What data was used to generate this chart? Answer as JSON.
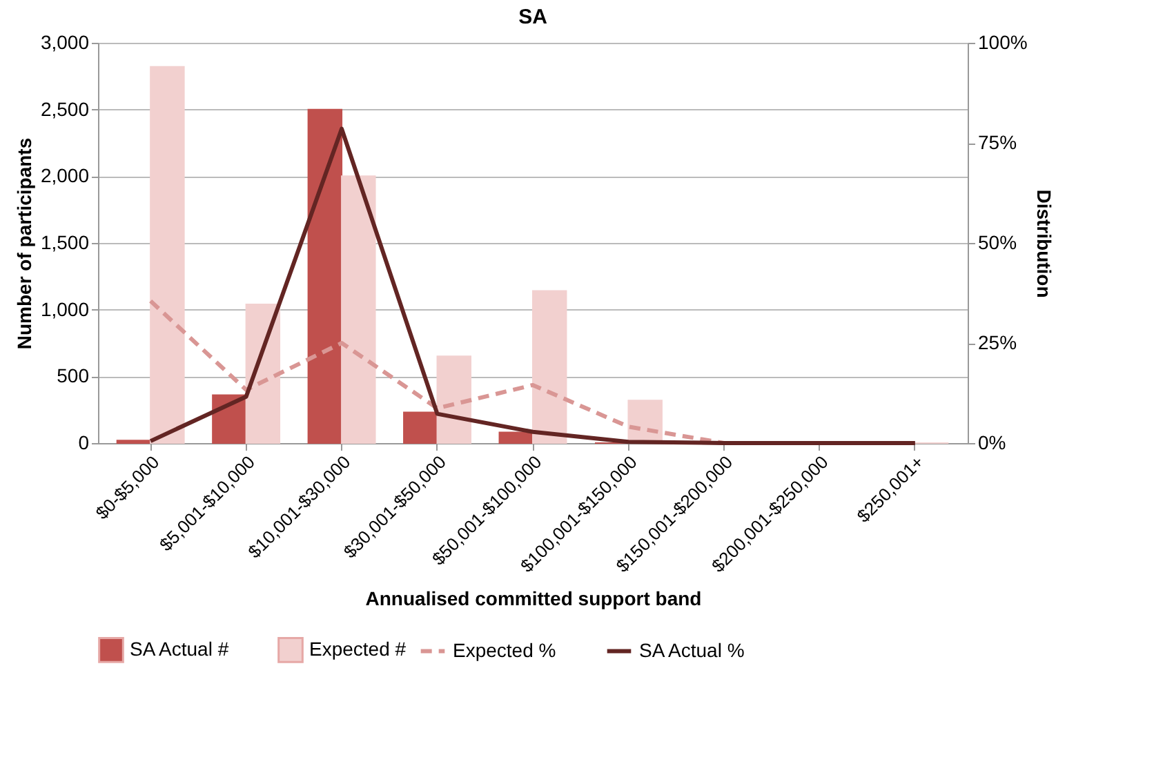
{
  "chart_data": {
    "type": "bar",
    "title": "SA",
    "xlabel": "Annualised committed support band",
    "ylabel": "Number of participants",
    "y2label": "Distribution",
    "categories": [
      "$0-$5,000",
      "$5,001-$10,000",
      "$10,001-$30,000",
      "$30,001-$50,000",
      "$50,001-$100,000",
      "$100,001-$150,000",
      "$150,001-$200,000",
      "$200,001-$250,000",
      "$250,001+"
    ],
    "series": [
      {
        "name": "SA Actual #",
        "color": "#c0504d",
        "values": [
          20,
          360,
          2500,
          230,
          80,
          0,
          0,
          0,
          0
        ]
      },
      {
        "name": "Expected #",
        "color": "#f2d0cf",
        "values": [
          2820,
          1040,
          2000,
          650,
          1140,
          320,
          0,
          0,
          0
        ]
      },
      {
        "name": "Expected %",
        "type": "line",
        "axis": "y2",
        "line_style": "dashed",
        "color": "#d99694",
        "values": [
          35.5,
          13.3,
          25,
          8.7,
          14.5,
          4.1,
          0,
          0,
          0
        ]
      },
      {
        "name": "SA Actual %",
        "type": "line",
        "axis": "y2",
        "line_style": "solid",
        "color": "#632523",
        "values": [
          0.5,
          11.6,
          78.5,
          7.3,
          2.8,
          0.3,
          0,
          0,
          0
        ]
      }
    ],
    "ylim": [
      0,
      3000
    ],
    "yticks": [
      {
        "value": 0,
        "label": "0"
      },
      {
        "value": 500,
        "label": "500"
      },
      {
        "value": 1000,
        "label": "1,000"
      },
      {
        "value": 1500,
        "label": "1,500"
      },
      {
        "value": 2000,
        "label": "2,000"
      },
      {
        "value": 2500,
        "label": "2,500"
      },
      {
        "value": 3000,
        "label": "3,000"
      }
    ],
    "y2lim": [
      0,
      100
    ],
    "y2ticks": [
      {
        "value": 0,
        "label": "0%"
      },
      {
        "value": 25,
        "label": "25%"
      },
      {
        "value": 50,
        "label": "50%"
      },
      {
        "value": 75,
        "label": "75%"
      },
      {
        "value": 100,
        "label": "100%"
      }
    ],
    "grid": "y",
    "legend": "bottom",
    "marker": "none"
  }
}
